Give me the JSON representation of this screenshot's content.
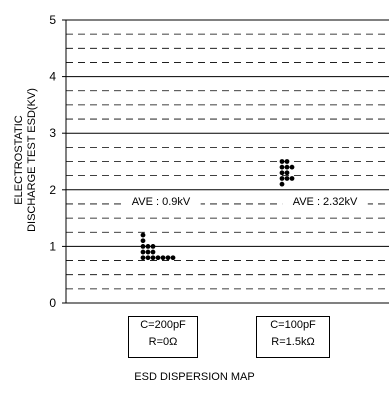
{
  "chart_data": {
    "type": "scatter",
    "title": "ESD DISPERSION MAP",
    "ylabel_lines": [
      "ELECTROSTATIC",
      "DISCHARGE TEST ESD(KV)"
    ],
    "ylim": [
      0,
      5
    ],
    "yticks": [
      0,
      1,
      2,
      3,
      4,
      5
    ],
    "grid": "dashed",
    "categories": [
      {
        "line1": "C=200pF",
        "line2": "R=0Ω"
      },
      {
        "line1": "C=100pF",
        "line2": "R=1.5kΩ"
      }
    ],
    "series": [
      {
        "category": 0,
        "average_label": "AVE : 0.9kV",
        "columns": [
          {
            "x_offset": 0,
            "values": [
              0.8,
              0.9,
              1.0,
              1.1,
              1.2
            ]
          },
          {
            "x_offset": 1,
            "values": [
              0.8,
              0.9,
              1.0
            ]
          },
          {
            "x_offset": 2,
            "values": [
              0.8,
              0.9,
              1.0
            ]
          },
          {
            "x_offset": 3,
            "values": [
              0.8
            ]
          },
          {
            "x_offset": 4,
            "values": [
              0.8
            ]
          },
          {
            "x_offset": 5,
            "values": [
              0.8
            ]
          },
          {
            "x_offset": 6,
            "values": [
              0.8
            ]
          }
        ]
      },
      {
        "category": 1,
        "average_label": "AVE : 2.32kV",
        "columns": [
          {
            "x_offset": 0,
            "values": [
              2.1,
              2.2,
              2.3,
              2.4,
              2.5
            ]
          },
          {
            "x_offset": 1,
            "values": [
              2.2,
              2.3,
              2.4,
              2.5
            ]
          },
          {
            "x_offset": 2,
            "values": [
              2.2,
              2.4
            ]
          }
        ]
      }
    ]
  }
}
